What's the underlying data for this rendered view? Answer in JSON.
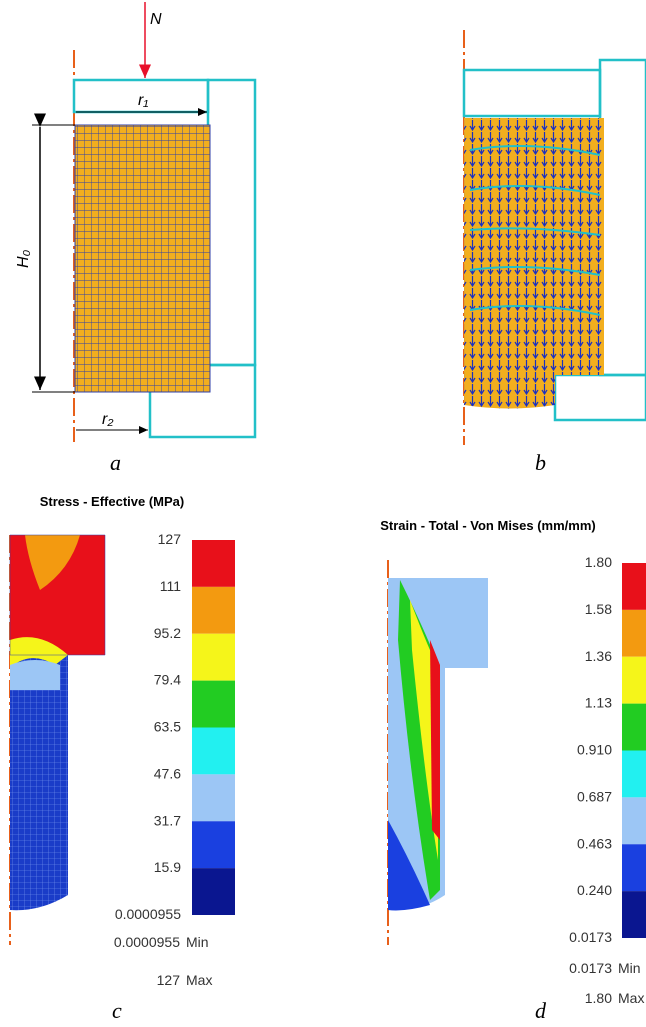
{
  "panel_a": {
    "force": "N",
    "radius_top": "r₁",
    "height": "H₀",
    "radius_bottom": "r₂",
    "label": "a"
  },
  "panel_b": {
    "label": "b"
  },
  "panel_c": {
    "title": "Stress - Effective (MPa)",
    "ticks": [
      "127",
      "111",
      "95.2",
      "79.4",
      "63.5",
      "47.6",
      "31.7",
      "15.9",
      "0.0000955"
    ],
    "min_value": "0.0000955",
    "min_label": "Min",
    "max_value": "127",
    "max_label": "Max",
    "label": "c"
  },
  "panel_d": {
    "title": "Strain - Total - Von Mises (mm/mm)",
    "ticks": [
      "1.80",
      "1.58",
      "1.36",
      "1.13",
      "0.910",
      "0.687",
      "0.463",
      "0.240",
      "0.0173"
    ],
    "min_value": "0.0173",
    "min_label": "Min",
    "max_value": "1.80",
    "max_label": "Max",
    "label": "d"
  },
  "colorbar_colors": [
    "#e8101a",
    "#f39a10",
    "#f5f51a",
    "#22cc22",
    "#22f0f0",
    "#9cc6f5",
    "#1a40e0",
    "#0a1690"
  ]
}
